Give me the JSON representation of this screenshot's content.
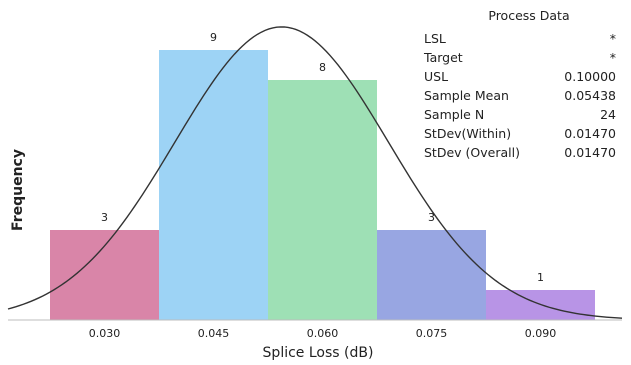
{
  "chart_data": {
    "type": "bar",
    "xlabel": "Splice Loss (dB)",
    "ylabel": "Frequency",
    "categories": [
      "0.030",
      "0.045",
      "0.060",
      "0.075",
      "0.090"
    ],
    "values": [
      3,
      9,
      8,
      3,
      1
    ],
    "ylim": [
      0,
      10
    ],
    "bar_colors": [
      "#d985a8",
      "#9dd3f5",
      "#9ee0b5",
      "#98a6e2",
      "#b894e6"
    ],
    "curve": {
      "type": "normal_fit",
      "mean": 0.05438,
      "stdev": 0.0147,
      "n": 24,
      "bin_width": 0.015,
      "color": "#333333"
    },
    "grid": false
  },
  "process_data": {
    "title": "Process Data",
    "rows": [
      {
        "label": "LSL",
        "value": "*"
      },
      {
        "label": "Target",
        "value": "*"
      },
      {
        "label": "USL",
        "value": "0.10000"
      },
      {
        "label": "Sample Mean",
        "value": "0.05438"
      },
      {
        "label": "Sample N",
        "value": "24"
      },
      {
        "label": "StDev(Within)",
        "value": "0.01470"
      },
      {
        "label": "StDev (Overall)",
        "value": "0.01470"
      }
    ]
  }
}
